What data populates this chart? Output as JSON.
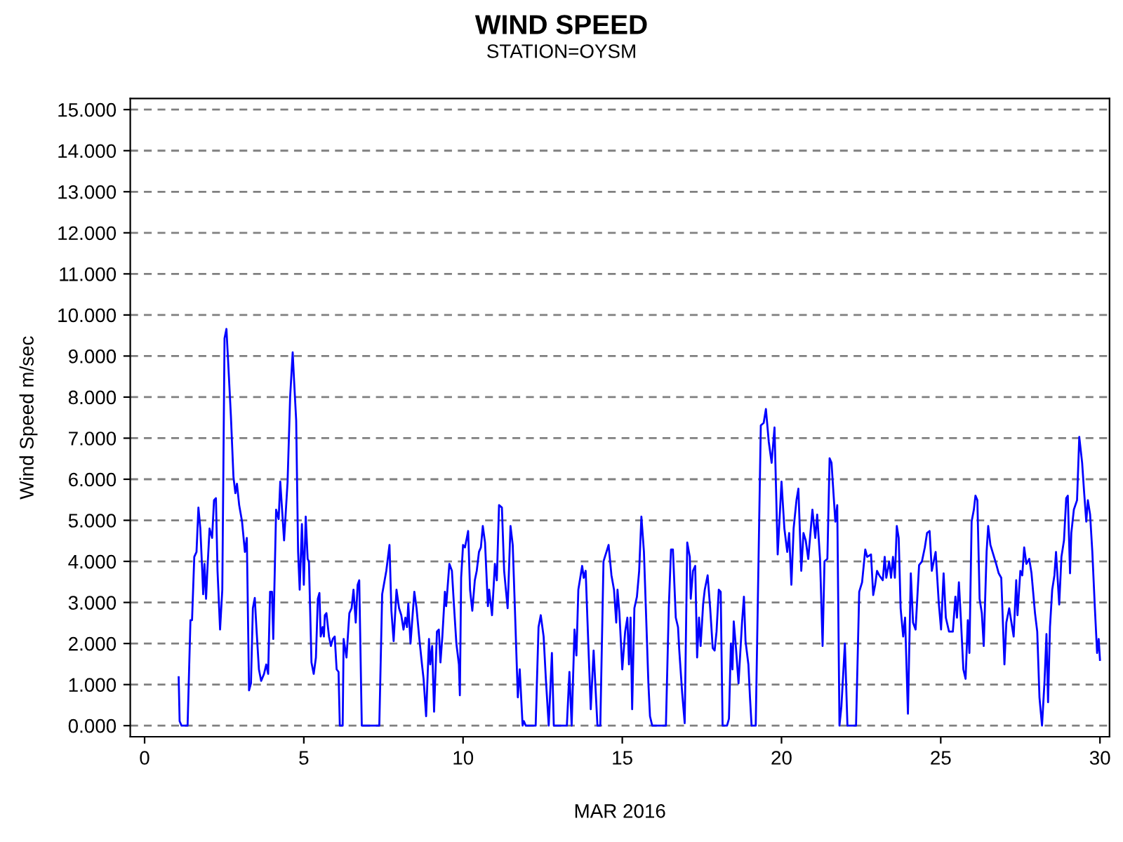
{
  "chart_data": {
    "type": "line",
    "title": "WIND SPEED",
    "subtitle": "STATION=OYSM",
    "xlabel": "MAR 2016",
    "ylabel": "Wind Speed m/sec",
    "series": [
      {
        "color": "#0000ff",
        "x": [
          1.07,
          1.1,
          1.16,
          1.35,
          1.44,
          1.49,
          1.56,
          1.63,
          1.69,
          1.75,
          1.81,
          1.84,
          1.88,
          1.93,
          1.97,
          2.04,
          2.12,
          2.18,
          2.24,
          2.29,
          2.37,
          2.44,
          2.51,
          2.57,
          2.65,
          2.71,
          2.79,
          2.85,
          2.9,
          2.97,
          3.06,
          3.15,
          3.21,
          3.28,
          3.34,
          3.4,
          3.46,
          3.51,
          3.59,
          3.66,
          3.75,
          3.82,
          3.88,
          3.94,
          4.0,
          4.04,
          4.13,
          4.21,
          4.26,
          4.38,
          4.49,
          4.57,
          4.65,
          4.69,
          4.76,
          4.82,
          4.87,
          4.94,
          5.0,
          5.06,
          5.12,
          5.16,
          5.24,
          5.31,
          5.38,
          5.44,
          5.49,
          5.53,
          5.59,
          5.63,
          5.66,
          5.71,
          5.79,
          5.85,
          5.91,
          5.97,
          6.03,
          6.09,
          6.13,
          6.22,
          6.25,
          6.34,
          6.43,
          6.5,
          6.56,
          6.63,
          6.69,
          6.74,
          6.82,
          7.37,
          7.46,
          7.59,
          7.69,
          7.75,
          7.82,
          7.91,
          7.99,
          8.06,
          8.13,
          8.19,
          8.24,
          8.28,
          8.35,
          8.47,
          8.54,
          8.62,
          8.71,
          8.76,
          8.84,
          8.93,
          8.97,
          9.03,
          9.09,
          9.18,
          9.24,
          9.29,
          9.35,
          9.43,
          9.47,
          9.57,
          9.65,
          9.72,
          9.79,
          9.87,
          9.9,
          9.94,
          10.0,
          10.06,
          10.16,
          10.22,
          10.29,
          10.37,
          10.43,
          10.5,
          10.56,
          10.62,
          10.69,
          10.78,
          10.82,
          10.91,
          11.0,
          11.06,
          11.13,
          11.22,
          11.29,
          11.4,
          11.49,
          11.56,
          11.63,
          11.72,
          11.78,
          11.87,
          11.91,
          11.97,
          12.28,
          12.37,
          12.44,
          12.53,
          12.6,
          12.69,
          12.79,
          12.85,
          13.26,
          13.34,
          13.41,
          13.5,
          13.56,
          13.62,
          13.74,
          13.79,
          13.85,
          13.93,
          14.01,
          14.1,
          14.22,
          14.31,
          14.41,
          14.57,
          14.66,
          14.74,
          14.81,
          14.85,
          14.91,
          15.0,
          15.09,
          15.16,
          15.21,
          15.26,
          15.31,
          15.38,
          15.46,
          15.53,
          15.6,
          15.68,
          15.74,
          15.82,
          15.87,
          15.94,
          16.37,
          16.46,
          16.53,
          16.59,
          16.68,
          16.75,
          16.79,
          16.88,
          16.96,
          17.04,
          17.12,
          17.15,
          17.22,
          17.29,
          17.35,
          17.41,
          17.46,
          17.54,
          17.59,
          17.68,
          17.76,
          17.84,
          17.9,
          17.96,
          18.03,
          18.09,
          18.15,
          18.29,
          18.35,
          18.41,
          18.46,
          18.5,
          18.57,
          18.65,
          18.76,
          18.82,
          18.87,
          18.96,
          19.01,
          19.06,
          19.19,
          19.35,
          19.44,
          19.51,
          19.6,
          19.69,
          19.78,
          19.88,
          20.0,
          20.09,
          20.18,
          20.24,
          20.31,
          20.38,
          20.47,
          20.53,
          20.62,
          20.69,
          20.76,
          20.84,
          20.97,
          21.06,
          21.12,
          21.21,
          21.29,
          21.35,
          21.44,
          21.51,
          21.57,
          21.69,
          21.75,
          21.82,
          21.88,
          21.99,
          22.07,
          22.34,
          22.44,
          22.53,
          22.63,
          22.69,
          22.81,
          22.88,
          22.94,
          23.0,
          23.07,
          23.18,
          23.24,
          23.29,
          23.38,
          23.44,
          23.5,
          23.56,
          23.62,
          23.68,
          23.74,
          23.82,
          23.88,
          23.97,
          24.06,
          24.13,
          24.21,
          24.32,
          24.41,
          24.5,
          24.57,
          24.65,
          24.72,
          24.84,
          24.94,
          25.01,
          25.09,
          25.16,
          25.26,
          25.38,
          25.46,
          25.51,
          25.57,
          25.63,
          25.71,
          25.78,
          25.85,
          25.9,
          25.97,
          26.04,
          26.09,
          26.15,
          26.22,
          26.29,
          26.35,
          26.44,
          26.49,
          26.56,
          26.65,
          26.74,
          26.82,
          26.9,
          27.0,
          27.06,
          27.15,
          27.22,
          27.29,
          27.37,
          27.41,
          27.5,
          27.56,
          27.62,
          27.69,
          27.78,
          27.85,
          27.96,
          28.03,
          28.1,
          28.18,
          28.26,
          28.32,
          28.37,
          28.43,
          28.5,
          28.57,
          28.62,
          28.72,
          28.79,
          28.87,
          28.94,
          28.99,
          29.06,
          29.1,
          29.18,
          29.28,
          29.35,
          29.44,
          29.5,
          29.57,
          29.62,
          29.69,
          29.76,
          29.84,
          29.91,
          29.96,
          30.0
        ],
        "values": [
          1.18,
          0.11,
          0,
          0,
          2.57,
          2.57,
          4.11,
          4.23,
          5.31,
          4.8,
          3.77,
          3.2,
          3.94,
          3.09,
          3.77,
          4.8,
          4.57,
          5.49,
          5.54,
          3.77,
          2.34,
          3.31,
          9.43,
          9.66,
          8.46,
          7.54,
          6.06,
          5.66,
          5.89,
          5.37,
          4.97,
          4.23,
          4.57,
          0.86,
          1.03,
          2.86,
          3.11,
          2.4,
          1.37,
          1.09,
          1.26,
          1.49,
          1.26,
          3.26,
          3.26,
          2.11,
          5.26,
          5.03,
          5.94,
          4.51,
          5.94,
          8.0,
          9.09,
          8.46,
          7.43,
          4.23,
          3.31,
          4.91,
          3.43,
          5.09,
          4.06,
          4.0,
          1.54,
          1.26,
          1.66,
          3.09,
          3.23,
          2.17,
          2.4,
          2.17,
          2.69,
          2.74,
          2.17,
          1.94,
          2.11,
          2.17,
          1.37,
          1.31,
          0,
          0,
          2.11,
          1.66,
          2.74,
          2.86,
          3.31,
          2.51,
          3.43,
          3.54,
          0,
          0,
          3.2,
          3.77,
          4.4,
          2.8,
          2.06,
          3.31,
          2.86,
          2.69,
          2.34,
          2.63,
          2.4,
          2.97,
          2.0,
          3.26,
          2.86,
          2.17,
          1.49,
          1.14,
          0.23,
          2.11,
          1.49,
          1.94,
          0.34,
          2.29,
          2.34,
          1.54,
          2.17,
          3.26,
          2.91,
          3.94,
          3.77,
          2.86,
          2.0,
          1.49,
          0.74,
          3.6,
          4.4,
          4.34,
          4.74,
          3.31,
          2.8,
          3.54,
          3.77,
          4.23,
          4.34,
          4.86,
          4.46,
          2.91,
          3.31,
          2.69,
          3.94,
          3.54,
          5.37,
          5.31,
          3.77,
          2.86,
          4.86,
          4.4,
          2.8,
          0.69,
          1.37,
          0,
          0.11,
          0,
          0,
          2.4,
          2.69,
          2.17,
          1.14,
          0,
          1.77,
          0,
          0,
          1.31,
          0,
          2.34,
          1.71,
          3.31,
          3.89,
          3.6,
          3.77,
          2.06,
          0.4,
          1.83,
          0,
          0,
          4.0,
          4.4,
          3.66,
          3.31,
          2.51,
          3.31,
          2.74,
          1.37,
          2.29,
          2.63,
          1.49,
          2.63,
          0.4,
          2.86,
          3.14,
          3.77,
          5.09,
          4.23,
          2.86,
          1.03,
          0.23,
          0,
          0,
          2.86,
          4.29,
          4.29,
          2.63,
          2.4,
          1.83,
          0.8,
          0.06,
          4.46,
          4.11,
          3.09,
          3.77,
          3.89,
          1.66,
          2.63,
          1.94,
          2.97,
          3.31,
          3.66,
          2.86,
          1.89,
          1.83,
          2.29,
          3.31,
          3.26,
          0,
          0,
          0.17,
          2.0,
          1.37,
          2.54,
          1.89,
          1.03,
          2.51,
          3.14,
          2.06,
          1.49,
          0.69,
          0,
          0,
          7.31,
          7.37,
          7.71,
          6.91,
          6.4,
          7.26,
          4.17,
          5.94,
          4.8,
          4.23,
          4.69,
          3.43,
          4.8,
          5.49,
          5.77,
          3.77,
          4.69,
          4.51,
          4.06,
          5.26,
          4.57,
          5.14,
          4.06,
          1.94,
          4.0,
          4.06,
          6.51,
          6.4,
          4.97,
          5.37,
          0,
          0.46,
          2.0,
          0,
          0,
          3.26,
          3.49,
          4.29,
          4.11,
          4.17,
          3.18,
          3.43,
          3.77,
          3.66,
          3.54,
          4.11,
          3.6,
          4.0,
          3.6,
          4.11,
          3.6,
          4.86,
          4.57,
          2.86,
          2.17,
          2.63,
          0.29,
          3.71,
          2.51,
          2.34,
          3.91,
          4.0,
          4.34,
          4.69,
          4.74,
          3.77,
          4.23,
          2.97,
          2.34,
          3.71,
          2.63,
          2.29,
          2.29,
          3.14,
          2.63,
          3.49,
          2.63,
          1.37,
          1.14,
          2.57,
          1.77,
          4.97,
          5.26,
          5.6,
          5.49,
          3.09,
          2.74,
          1.94,
          4.23,
          4.86,
          4.4,
          4.17,
          3.94,
          3.71,
          3.6,
          1.49,
          2.51,
          2.86,
          2.51,
          2.17,
          3.54,
          2.69,
          3.77,
          3.66,
          4.34,
          3.94,
          4.06,
          3.71,
          2.74,
          2.29,
          0.69,
          0,
          1.09,
          2.23,
          0.57,
          2.4,
          3.31,
          3.66,
          4.23,
          2.95,
          4.11,
          4.51,
          5.54,
          5.6,
          3.71,
          4.69,
          5.26,
          5.49,
          7.03,
          6.4,
          5.71,
          4.97,
          5.49,
          5.14,
          4.23,
          2.86,
          1.77,
          2.11,
          1.6
        ]
      }
    ],
    "xlim": [
      -0.45,
      30.3
    ],
    "xticks": [
      0,
      5,
      10,
      15,
      20,
      25,
      30
    ],
    "ylim": [
      -0.27,
      15.27
    ],
    "yticks": [
      {
        "value": 0,
        "label": "0.000"
      },
      {
        "value": 1,
        "label": "1.000"
      },
      {
        "value": 2,
        "label": "2.000"
      },
      {
        "value": 3,
        "label": "3.000"
      },
      {
        "value": 4,
        "label": "4.000"
      },
      {
        "value": 5,
        "label": "5.000"
      },
      {
        "value": 6,
        "label": "6.000"
      },
      {
        "value": 7,
        "label": "7.000"
      },
      {
        "value": 8,
        "label": "8.000"
      },
      {
        "value": 9,
        "label": "9.000"
      },
      {
        "value": 10,
        "label": "10.000"
      },
      {
        "value": 11,
        "label": "11.000"
      },
      {
        "value": 12,
        "label": "12.000"
      },
      {
        "value": 13,
        "label": "13.000"
      },
      {
        "value": 14,
        "label": "14.000"
      },
      {
        "value": 15,
        "label": "15.000"
      }
    ],
    "grid": "y",
    "line_style": "solid",
    "marker": "none"
  }
}
